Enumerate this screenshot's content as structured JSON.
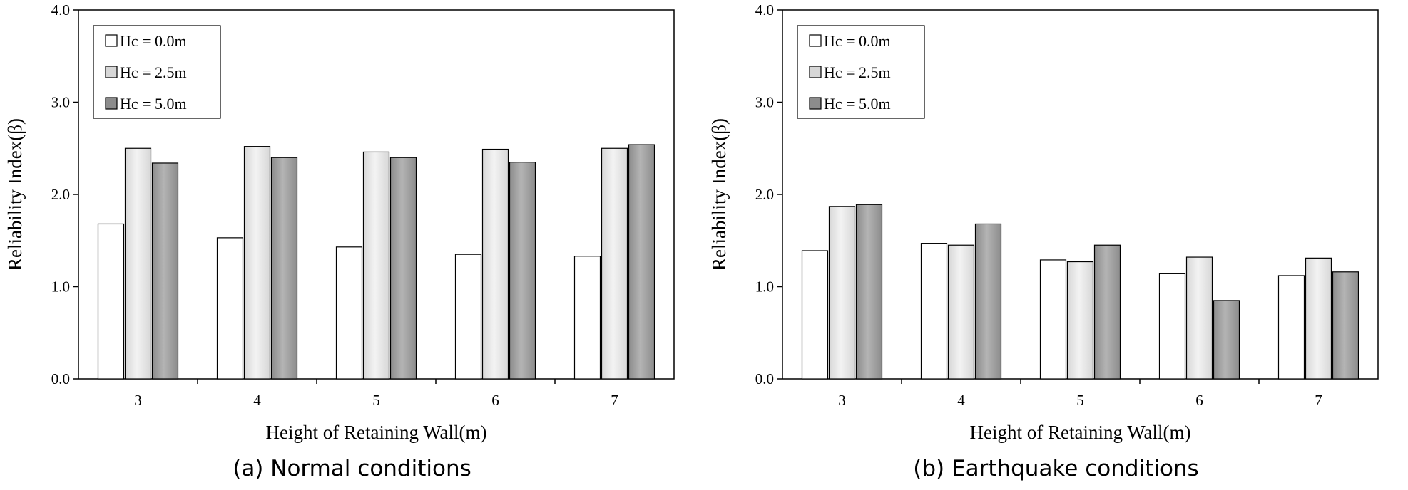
{
  "legend_labels": [
    "Hc = 0.0m",
    "Hc = 2.5m",
    "Hc = 5.0m"
  ],
  "colors": {
    "series": [
      "#ffffff",
      "#d7d7d7",
      "#8c8c8c"
    ],
    "series_highlight": [
      "#ffffff",
      "#f3f3f3",
      "#b4b4b4"
    ],
    "axis": "#000000"
  },
  "chart_data": [
    {
      "type": "bar",
      "caption": "(a) Normal conditions",
      "xlabel": "Height of Retaining Wall(m)",
      "ylabel": "Reliability Index(β)",
      "ylim": [
        0.0,
        4.0
      ],
      "y_ticks": [
        "0.0",
        "1.0",
        "2.0",
        "3.0",
        "4.0"
      ],
      "grid": false,
      "legend_position": "top-left",
      "categories": [
        "3",
        "4",
        "5",
        "6",
        "7"
      ],
      "series": [
        {
          "name": "Hc = 0.0m",
          "values": [
            1.68,
            1.53,
            1.43,
            1.35,
            1.33
          ]
        },
        {
          "name": "Hc = 2.5m",
          "values": [
            2.5,
            2.52,
            2.46,
            2.49,
            2.5
          ]
        },
        {
          "name": "Hc = 5.0m",
          "values": [
            2.34,
            2.4,
            2.4,
            2.35,
            2.54
          ]
        }
      ]
    },
    {
      "type": "bar",
      "caption": "(b) Earthquake conditions",
      "xlabel": "Height of Retaining Wall(m)",
      "ylabel": "Reliability Index(β)",
      "ylim": [
        0.0,
        4.0
      ],
      "y_ticks": [
        "0.0",
        "1.0",
        "2.0",
        "3.0",
        "4.0"
      ],
      "grid": false,
      "legend_position": "top-left",
      "categories": [
        "3",
        "4",
        "5",
        "6",
        "7"
      ],
      "series": [
        {
          "name": "Hc = 0.0m",
          "values": [
            1.39,
            1.47,
            1.29,
            1.14,
            1.12
          ]
        },
        {
          "name": "Hc = 2.5m",
          "values": [
            1.87,
            1.45,
            1.27,
            1.32,
            1.31
          ]
        },
        {
          "name": "Hc = 5.0m",
          "values": [
            1.89,
            1.68,
            1.45,
            0.85,
            1.16
          ]
        }
      ]
    }
  ]
}
